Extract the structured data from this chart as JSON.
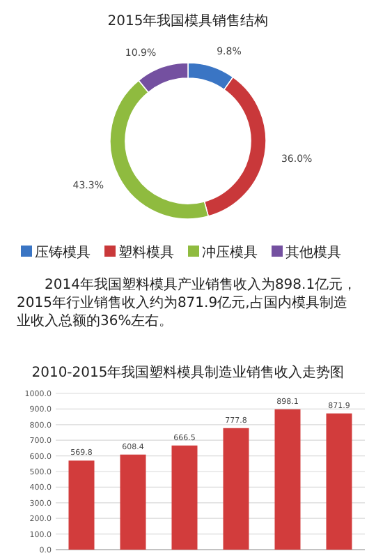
{
  "chart_data": [
    {
      "type": "donut",
      "title": "2015年我国模具销售结构",
      "categories": [
        "压铸模具",
        "塑料模具",
        "冲压模具",
        "其他模具"
      ],
      "values": [
        9.8,
        36.0,
        43.3,
        10.9
      ],
      "colors": [
        "#3a75c4",
        "#c9383a",
        "#8fbb3f",
        "#7450a0"
      ],
      "value_labels": [
        "9.8%",
        "36.0%",
        "43.3%",
        "10.9%"
      ],
      "legend": "bottom",
      "annotations": [
        "2014年我国塑料模具产业销售收入为898.1亿元，2015年行业销售收入约为871.9亿元,占国内模具制造业收入总额的36%左右。"
      ]
    },
    {
      "type": "bar",
      "title": "2010-2015年我国塑料模具制造业销售收入走势图",
      "categories": [
        null,
        null,
        null,
        null,
        null,
        null
      ],
      "values": [
        569.8,
        608.4,
        666.5,
        777.8,
        898.1,
        871.9
      ],
      "color": "#d23c3c",
      "value_labels": [
        "569.8",
        "608.4",
        "666.5",
        "777.8",
        "898.1",
        "871.9"
      ],
      "ylim": [
        0,
        1000
      ],
      "yticks": [
        {
          "value": 0,
          "label": "0.0"
        },
        {
          "value": 100,
          "label": "100.0"
        },
        {
          "value": 200,
          "label": "200.0"
        },
        {
          "value": 300,
          "label": "300.0"
        },
        {
          "value": 400,
          "label": "400.0"
        },
        {
          "value": 500,
          "label": "500.0"
        },
        {
          "value": 600,
          "label": "600.0"
        },
        {
          "value": 700,
          "label": "700.0"
        },
        {
          "value": 800,
          "label": "800.0"
        },
        {
          "value": 900,
          "label": "900.0"
        },
        {
          "value": 1000,
          "label": "1000.0"
        }
      ],
      "grid": "y"
    }
  ]
}
